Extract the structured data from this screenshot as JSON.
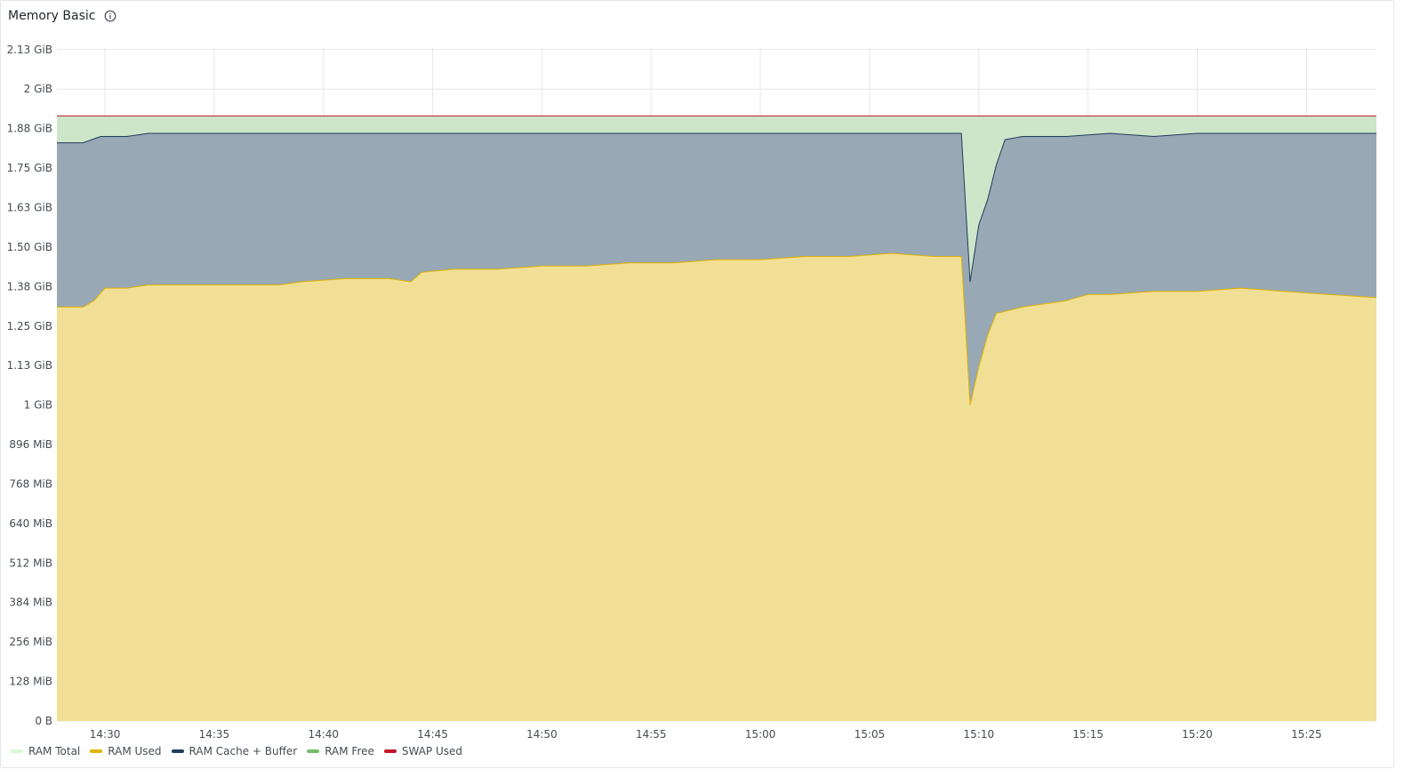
{
  "panel": {
    "title": "Memory Basic",
    "info_icon": "info-circle-icon"
  },
  "chart_data": {
    "type": "area",
    "title": "Memory Basic",
    "xlabel": "",
    "ylabel": "",
    "grid": true,
    "legend_position": "bottom-left",
    "x_unit": "minutes",
    "x_range_minutes": [
      "14:27.8",
      "15:28.2"
    ],
    "y_unit": "GiB",
    "y_range": [
      0,
      2.13
    ],
    "x_ticks": [
      "14:30",
      "14:35",
      "14:40",
      "14:45",
      "14:50",
      "14:55",
      "15:00",
      "15:05",
      "15:10",
      "15:15",
      "15:20",
      "15:25"
    ],
    "x_tick_times": [
      "14:30",
      "14:35",
      "14:40",
      "14:45",
      "14:50",
      "14:55",
      "15:00",
      "15:05",
      "15:10",
      "15:15",
      "15:20",
      "15:25"
    ],
    "y_ticks": [
      {
        "label": "0 B",
        "value": 0
      },
      {
        "label": "128 MiB",
        "value": 0.125
      },
      {
        "label": "256 MiB",
        "value": 0.25
      },
      {
        "label": "384 MiB",
        "value": 0.375
      },
      {
        "label": "512 MiB",
        "value": 0.5
      },
      {
        "label": "640 MiB",
        "value": 0.625
      },
      {
        "label": "768 MiB",
        "value": 0.75
      },
      {
        "label": "896 MiB",
        "value": 0.875
      },
      {
        "label": "1 GiB",
        "value": 1.0
      },
      {
        "label": "1.13 GiB",
        "value": 1.125
      },
      {
        "label": "1.25 GiB",
        "value": 1.25
      },
      {
        "label": "1.38 GiB",
        "value": 1.375
      },
      {
        "label": "1.50 GiB",
        "value": 1.5
      },
      {
        "label": "1.63 GiB",
        "value": 1.625
      },
      {
        "label": "1.75 GiB",
        "value": 1.75
      },
      {
        "label": "1.88 GiB",
        "value": 1.875
      },
      {
        "label": "2 GiB",
        "value": 2.0
      },
      {
        "label": "2.13 GiB",
        "value": 2.125
      }
    ],
    "series": [
      {
        "name": "RAM Total",
        "color": "#c8f2c2",
        "fill": "#cde6c9",
        "points": [
          [
            "14:27.8",
            1.915
          ],
          [
            "15:28.2",
            1.915
          ]
        ]
      },
      {
        "name": "RAM Used",
        "color": "#e0b400",
        "fill": "#f2df96",
        "points": [
          [
            "14:27.8",
            1.31
          ],
          [
            "14:29.0",
            1.31
          ],
          [
            "14:29.5",
            1.33
          ],
          [
            "14:30.0",
            1.37
          ],
          [
            "14:31.0",
            1.37
          ],
          [
            "14:32.0",
            1.38
          ],
          [
            "14:34.0",
            1.38
          ],
          [
            "14:35.0",
            1.38
          ],
          [
            "14:36.0",
            1.38
          ],
          [
            "14:38.0",
            1.38
          ],
          [
            "14:39.0",
            1.39
          ],
          [
            "14:41.0",
            1.4
          ],
          [
            "14:43.0",
            1.4
          ],
          [
            "14:44.0",
            1.39
          ],
          [
            "14:44.5",
            1.42
          ],
          [
            "14:46.0",
            1.43
          ],
          [
            "14:48.0",
            1.43
          ],
          [
            "14:50.0",
            1.44
          ],
          [
            "14:52.0",
            1.44
          ],
          [
            "14:54.0",
            1.45
          ],
          [
            "14:56.0",
            1.45
          ],
          [
            "14:58.0",
            1.46
          ],
          [
            "15:00.0",
            1.46
          ],
          [
            "15:02.0",
            1.47
          ],
          [
            "15:04.0",
            1.47
          ],
          [
            "15:06.0",
            1.48
          ],
          [
            "15:08.0",
            1.47
          ],
          [
            "15:09.2",
            1.47
          ],
          [
            "15:09.6",
            1.0
          ],
          [
            "15:10.0",
            1.12
          ],
          [
            "15:10.4",
            1.22
          ],
          [
            "15:10.8",
            1.29
          ],
          [
            "15:12.0",
            1.31
          ],
          [
            "15:14.0",
            1.33
          ],
          [
            "15:15.0",
            1.35
          ],
          [
            "15:16.0",
            1.35
          ],
          [
            "15:18.0",
            1.36
          ],
          [
            "15:20.0",
            1.36
          ],
          [
            "15:22.0",
            1.37
          ],
          [
            "15:24.0",
            1.36
          ],
          [
            "15:26.0",
            1.35
          ],
          [
            "15:28.2",
            1.34
          ]
        ]
      },
      {
        "name": "RAM Cache + Buffer",
        "color": "#1f3e5c",
        "fill": "#98a8b4",
        "points": [
          [
            "14:27.8",
            1.83
          ],
          [
            "14:29.0",
            1.83
          ],
          [
            "14:29.8",
            1.85
          ],
          [
            "14:31.0",
            1.85
          ],
          [
            "14:32.0",
            1.86
          ],
          [
            "14:33.0",
            1.86
          ],
          [
            "14:34.0",
            1.86
          ],
          [
            "14:35.0",
            1.86
          ],
          [
            "14:37.0",
            1.86
          ],
          [
            "14:39.0",
            1.86
          ],
          [
            "14:41.0",
            1.86
          ],
          [
            "14:43.0",
            1.86
          ],
          [
            "14:45.0",
            1.86
          ],
          [
            "14:47.0",
            1.86
          ],
          [
            "14:50.0",
            1.86
          ],
          [
            "14:53.0",
            1.86
          ],
          [
            "14:56.0",
            1.86
          ],
          [
            "14:59.0",
            1.86
          ],
          [
            "15:02.0",
            1.86
          ],
          [
            "15:05.0",
            1.86
          ],
          [
            "15:07.0",
            1.86
          ],
          [
            "15:09.2",
            1.86
          ],
          [
            "15:09.6",
            1.39
          ],
          [
            "15:10.0",
            1.57
          ],
          [
            "15:10.4",
            1.65
          ],
          [
            "15:10.8",
            1.76
          ],
          [
            "15:11.2",
            1.84
          ],
          [
            "15:12.0",
            1.85
          ],
          [
            "15:14.0",
            1.85
          ],
          [
            "15:16.0",
            1.86
          ],
          [
            "15:18.0",
            1.85
          ],
          [
            "15:20.0",
            1.86
          ],
          [
            "15:22.0",
            1.86
          ],
          [
            "15:24.0",
            1.86
          ],
          [
            "15:26.0",
            1.86
          ],
          [
            "15:28.2",
            1.86
          ]
        ]
      },
      {
        "name": "RAM Free",
        "color": "#73bf69",
        "fill": "none",
        "points": []
      },
      {
        "name": "SWAP Used",
        "color": "#c4162a",
        "fill": "none",
        "points": [
          [
            "14:27.8",
            1.915
          ],
          [
            "15:28.2",
            1.915
          ]
        ]
      }
    ]
  },
  "legend": {
    "items": [
      {
        "label": "RAM Total",
        "color": "#d9f7d4"
      },
      {
        "label": "RAM Used",
        "color": "#e0b400"
      },
      {
        "label": "RAM Cache + Buffer",
        "color": "#1f3e5c"
      },
      {
        "label": "RAM Free",
        "color": "#73bf69"
      },
      {
        "label": "SWAP Used",
        "color": "#c4162a"
      }
    ]
  }
}
